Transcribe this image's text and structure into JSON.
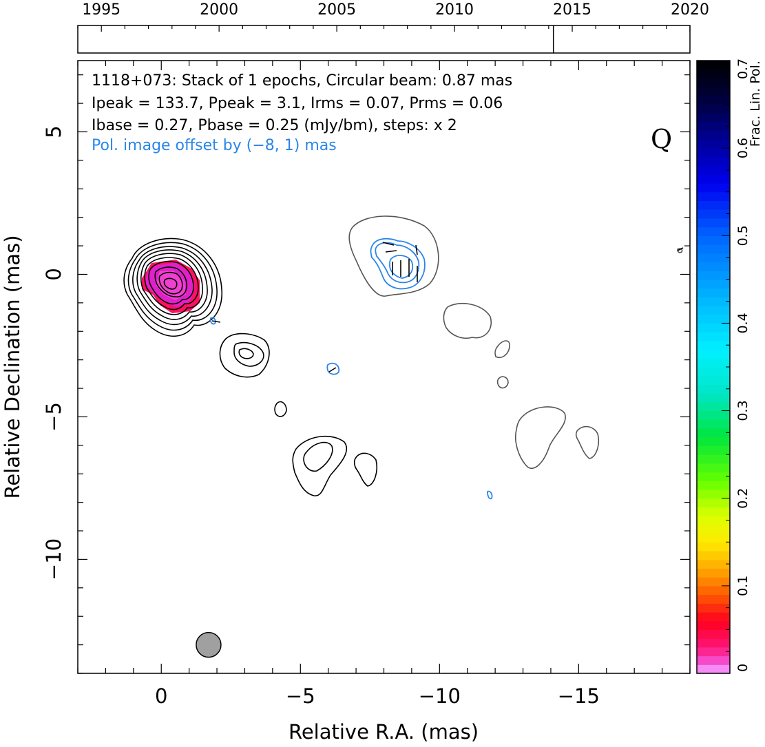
{
  "chart_data": {
    "type": "contour",
    "timeline": {
      "ticks": [
        "1995",
        "2000",
        "2005",
        "2010",
        "2015",
        "2020"
      ],
      "tick_values": [
        1995,
        2000,
        2005,
        2010,
        2015,
        2020
      ],
      "range": [
        1994,
        2020
      ],
      "epoch_markers": [
        2014.2
      ]
    },
    "annotations": {
      "line1": "1118+073: Stack of 1 epochs, Circular beam: 0.87 mas",
      "line2": "Ipeak = 133.7, Ppeak = 3.1, Irms = 0.07, Prms = 0.06",
      "line3": "Ibase = 0.27, Pbase = 0.25 (mJy/bm), steps: x 2",
      "line4": "Pol. image offset by (−8, 1) mas",
      "quality_label": "Q"
    },
    "xlabel": "Relative R.A. (mas)",
    "ylabel": "Relative Declination (mas)",
    "xlim": [
      3,
      -19
    ],
    "ylim": [
      -14,
      7.5
    ],
    "x_ticks": [
      0,
      -5,
      -10,
      -15
    ],
    "x_tick_labels": [
      "0",
      "−5",
      "−10",
      "−15"
    ],
    "y_ticks": [
      5,
      0,
      -5,
      -10
    ],
    "y_tick_labels": [
      "5",
      "0",
      "−5",
      "−10"
    ],
    "colorbar": {
      "label": "Frac. Lin. Pol.",
      "range": [
        0,
        0.7
      ],
      "ticks": [
        0,
        0.1,
        0.2,
        0.3,
        0.4,
        0.5,
        0.6,
        0.7
      ],
      "tick_labels": [
        "0",
        "0.1",
        "0.2",
        "0.3",
        "0.4",
        "0.5",
        "0.6",
        "0.7"
      ]
    },
    "beam": {
      "ra": -1.7,
      "dec": -13.0,
      "diameter_mas": 0.87
    },
    "colors": {
      "stokes_i": "#000000",
      "stokes_i_offset": "#555555",
      "polarization": "#2a86e8",
      "frac_pol_core": "#e020c8",
      "frac_pol_core_edge": "#ff1060",
      "beam_fill": "#a0a0a0"
    }
  }
}
